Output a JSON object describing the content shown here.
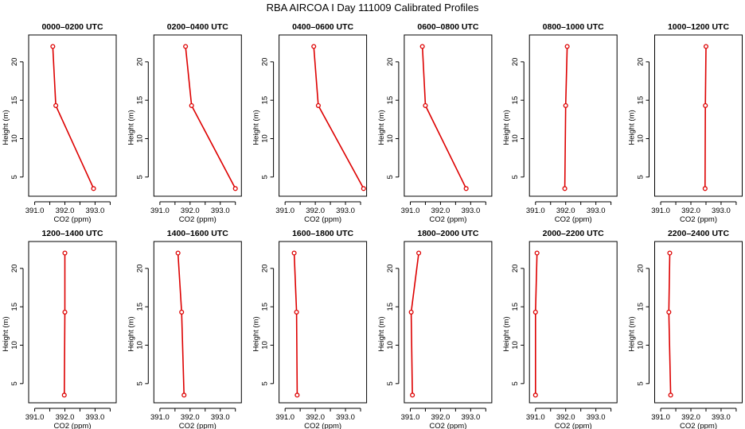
{
  "figure": {
    "title": "RBA AIRCOA I  Day 111009  Calibrated Profiles"
  },
  "colors": {
    "profile": "#dd0000",
    "axes": "#000000",
    "background": "#ffffff"
  },
  "chart_data": [
    {
      "type": "line",
      "title": "0000–0200 UTC",
      "xlabel": "CO2 (ppm)",
      "ylabel": "Height (m)",
      "xlim": [
        390.8,
        393.7
      ],
      "ylim": [
        2.5,
        23.5
      ],
      "xticks": [
        "391.0",
        "392.0",
        "393.0"
      ],
      "yticks": [
        "5",
        "10",
        "15",
        "20"
      ],
      "grid": false,
      "series": [
        {
          "x": [
            391.6,
            391.7,
            392.95
          ],
          "y": [
            22,
            14.3,
            3.5
          ]
        }
      ]
    },
    {
      "type": "line",
      "title": "0200–0400 UTC",
      "xlabel": "CO2 (ppm)",
      "ylabel": "Height (m)",
      "xlim": [
        390.8,
        393.7
      ],
      "ylim": [
        2.5,
        23.5
      ],
      "xticks": [
        "391.0",
        "392.0",
        "393.0"
      ],
      "yticks": [
        "5",
        "10",
        "15",
        "20"
      ],
      "grid": false,
      "series": [
        {
          "x": [
            391.85,
            392.05,
            393.5
          ],
          "y": [
            22,
            14.3,
            3.5
          ]
        }
      ]
    },
    {
      "type": "line",
      "title": "0400–0600 UTC",
      "xlabel": "CO2 (ppm)",
      "ylabel": "Height (m)",
      "xlim": [
        390.8,
        393.7
      ],
      "ylim": [
        2.5,
        23.5
      ],
      "xticks": [
        "391.0",
        "392.0",
        "393.0"
      ],
      "yticks": [
        "5",
        "10",
        "15",
        "20"
      ],
      "grid": false,
      "series": [
        {
          "x": [
            391.95,
            392.1,
            393.6
          ],
          "y": [
            22,
            14.3,
            3.5
          ]
        }
      ]
    },
    {
      "type": "line",
      "title": "0600–0800 UTC",
      "xlabel": "CO2 (ppm)",
      "ylabel": "Height (m)",
      "xlim": [
        390.8,
        393.7
      ],
      "ylim": [
        2.5,
        23.5
      ],
      "xticks": [
        "391.0",
        "392.0",
        "393.0"
      ],
      "yticks": [
        "5",
        "10",
        "15",
        "20"
      ],
      "grid": false,
      "series": [
        {
          "x": [
            391.4,
            391.5,
            392.85
          ],
          "y": [
            22,
            14.3,
            3.5
          ]
        }
      ]
    },
    {
      "type": "line",
      "title": "0800–1000 UTC",
      "xlabel": "CO2 (ppm)",
      "ylabel": "Height (m)",
      "xlim": [
        390.8,
        393.7
      ],
      "ylim": [
        2.5,
        23.5
      ],
      "xticks": [
        "391.0",
        "392.0",
        "393.0"
      ],
      "yticks": [
        "5",
        "10",
        "15",
        "20"
      ],
      "grid": false,
      "series": [
        {
          "x": [
            392.05,
            392.0,
            391.97
          ],
          "y": [
            22,
            14.3,
            3.5
          ]
        }
      ]
    },
    {
      "type": "line",
      "title": "1000–1200 UTC",
      "xlabel": "CO2 (ppm)",
      "ylabel": "Height (m)",
      "xlim": [
        390.8,
        393.7
      ],
      "ylim": [
        2.5,
        23.5
      ],
      "xticks": [
        "391.0",
        "392.0",
        "393.0"
      ],
      "yticks": [
        "5",
        "10",
        "15",
        "20"
      ],
      "grid": false,
      "series": [
        {
          "x": [
            392.5,
            392.48,
            392.47
          ],
          "y": [
            22,
            14.3,
            3.5
          ]
        }
      ]
    },
    {
      "type": "line",
      "title": "1200–1400 UTC",
      "xlabel": "CO2 (ppm)",
      "ylabel": "Height (m)",
      "xlim": [
        390.8,
        393.7
      ],
      "ylim": [
        2.5,
        23.5
      ],
      "xticks": [
        "391.0",
        "392.0",
        "393.0"
      ],
      "yticks": [
        "5",
        "10",
        "15",
        "20"
      ],
      "grid": false,
      "series": [
        {
          "x": [
            392.0,
            392.0,
            391.98
          ],
          "y": [
            22,
            14.3,
            3.5
          ]
        }
      ]
    },
    {
      "type": "line",
      "title": "1400–1600 UTC",
      "xlabel": "CO2 (ppm)",
      "ylabel": "Height (m)",
      "xlim": [
        390.8,
        393.7
      ],
      "ylim": [
        2.5,
        23.5
      ],
      "xticks": [
        "391.0",
        "392.0",
        "393.0"
      ],
      "yticks": [
        "5",
        "10",
        "15",
        "20"
      ],
      "grid": false,
      "series": [
        {
          "x": [
            391.6,
            391.72,
            391.8
          ],
          "y": [
            22,
            14.3,
            3.5
          ]
        }
      ]
    },
    {
      "type": "line",
      "title": "1600–1800 UTC",
      "xlabel": "CO2 (ppm)",
      "ylabel": "Height (m)",
      "xlim": [
        390.8,
        393.7
      ],
      "ylim": [
        2.5,
        23.5
      ],
      "xticks": [
        "391.0",
        "392.0",
        "393.0"
      ],
      "yticks": [
        "5",
        "10",
        "15",
        "20"
      ],
      "grid": false,
      "series": [
        {
          "x": [
            391.3,
            391.38,
            391.4
          ],
          "y": [
            22,
            14.3,
            3.5
          ]
        }
      ]
    },
    {
      "type": "line",
      "title": "1800–2000 UTC",
      "xlabel": "CO2 (ppm)",
      "ylabel": "Height (m)",
      "xlim": [
        390.8,
        393.7
      ],
      "ylim": [
        2.5,
        23.5
      ],
      "xticks": [
        "391.0",
        "392.0",
        "393.0"
      ],
      "yticks": [
        "5",
        "10",
        "15",
        "20"
      ],
      "grid": false,
      "series": [
        {
          "x": [
            391.28,
            391.03,
            391.07
          ],
          "y": [
            22,
            14.3,
            3.5
          ]
        }
      ]
    },
    {
      "type": "line",
      "title": "2000–2200 UTC",
      "xlabel": "CO2 (ppm)",
      "ylabel": "Height (m)",
      "xlim": [
        390.8,
        393.7
      ],
      "ylim": [
        2.5,
        23.5
      ],
      "xticks": [
        "391.0",
        "392.0",
        "393.0"
      ],
      "yticks": [
        "5",
        "10",
        "15",
        "20"
      ],
      "grid": false,
      "series": [
        {
          "x": [
            391.05,
            391.0,
            391.0
          ],
          "y": [
            22,
            14.3,
            3.5
          ]
        }
      ]
    },
    {
      "type": "line",
      "title": "2200–2400 UTC",
      "xlabel": "CO2 (ppm)",
      "ylabel": "Height (m)",
      "xlim": [
        390.8,
        393.7
      ],
      "ylim": [
        2.5,
        23.5
      ],
      "xticks": [
        "391.0",
        "392.0",
        "393.0"
      ],
      "yticks": [
        "5",
        "10",
        "15",
        "20"
      ],
      "grid": false,
      "series": [
        {
          "x": [
            391.3,
            391.27,
            391.33
          ],
          "y": [
            22,
            14.3,
            3.5
          ]
        }
      ]
    }
  ]
}
